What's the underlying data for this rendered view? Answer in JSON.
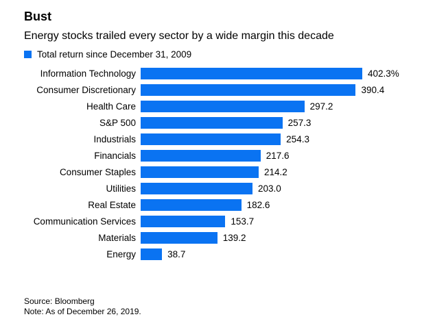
{
  "header": {
    "title": "Bust",
    "subtitle": "Energy stocks trailed every sector by a wide margin this decade"
  },
  "legend": {
    "label": "Total return since December 31, 2009"
  },
  "colors": {
    "bar": "#0a73f2",
    "text": "#000000",
    "background": "#ffffff"
  },
  "chart_data": {
    "type": "bar",
    "orientation": "horizontal",
    "title": "Bust",
    "subtitle": "Energy stocks trailed every sector by a wide margin this decade",
    "legend_entries": [
      "Total return since December 31, 2009"
    ],
    "legend_position": "top",
    "grid": false,
    "xlabel": "",
    "ylabel": "",
    "xlim": [
      0,
      402.3
    ],
    "categories": [
      "Information Technology",
      "Consumer Discretionary",
      "Health Care",
      "S&P 500",
      "Industrials",
      "Financials",
      "Consumer Staples",
      "Utilities",
      "Real Estate",
      "Communication Services",
      "Materials",
      "Energy"
    ],
    "values": [
      402.3,
      390.4,
      297.2,
      257.3,
      254.3,
      217.6,
      214.2,
      203.0,
      182.6,
      153.7,
      139.2,
      38.7
    ],
    "value_labels": [
      "402.3%",
      "390.4",
      "297.2",
      "257.3",
      "254.3",
      "217.6",
      "214.2",
      "203.0",
      "182.6",
      "153.7",
      "139.2",
      "38.7"
    ]
  },
  "footer": {
    "source": "Source: Bloomberg",
    "note": "Note: As of December 26, 2019."
  }
}
